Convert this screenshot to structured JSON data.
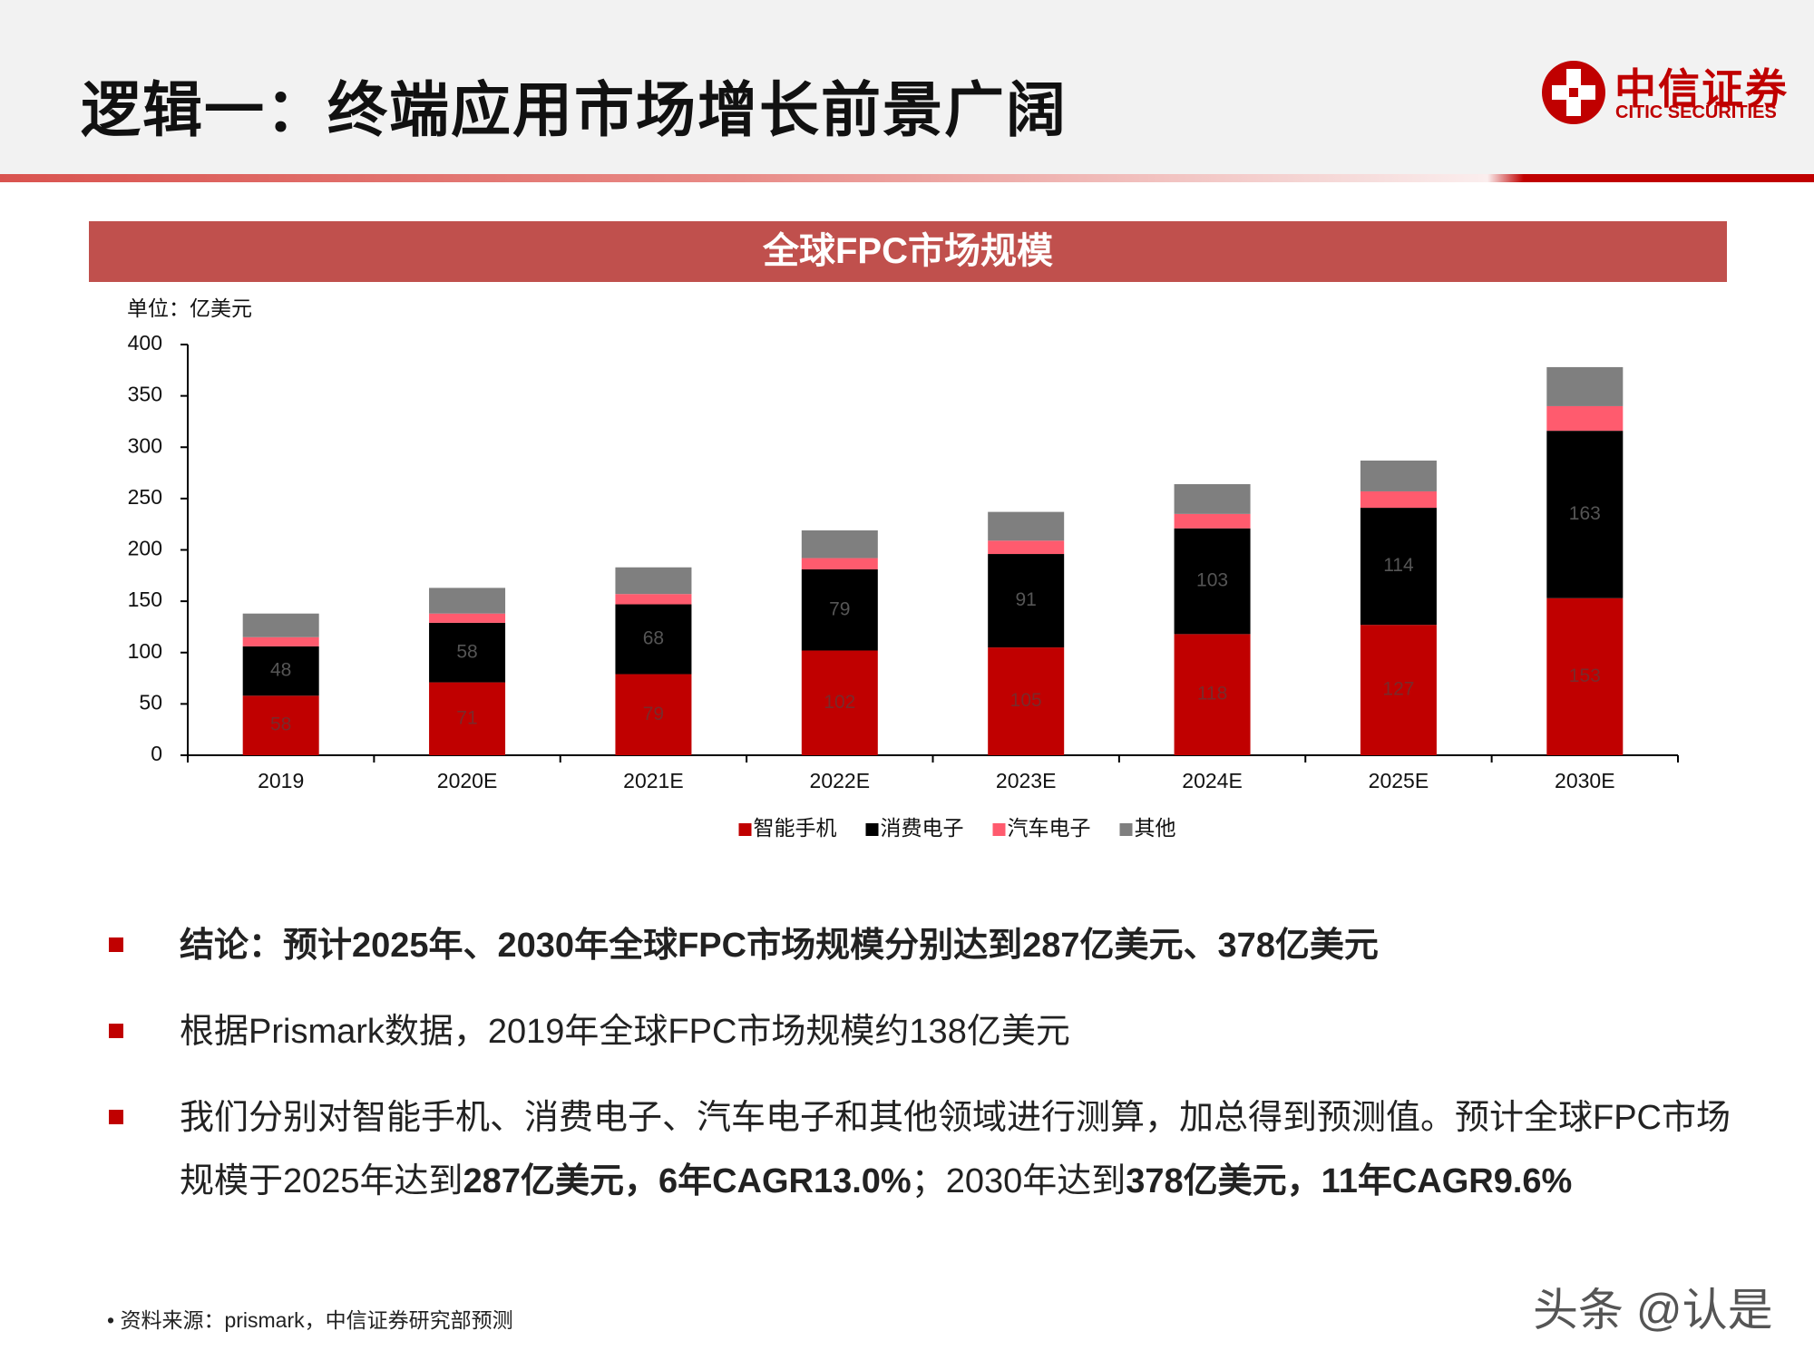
{
  "header": {
    "title": "逻辑一：终端应用市场增长前景广阔",
    "logo_cn": "中信证券",
    "logo_en": "CITIC SECURITIES"
  },
  "chart_data": {
    "type": "stacked_bar",
    "title": "全球FPC市场规模",
    "unit_label": "单位：亿美元",
    "categories": [
      "2019",
      "2020E",
      "2021E",
      "2022E",
      "2023E",
      "2024E",
      "2025E",
      "2030E"
    ],
    "series": [
      {
        "name": "智能手机",
        "color": "#c00000",
        "values": [
          58,
          71,
          79,
          102,
          105,
          118,
          127,
          153
        ],
        "data_labels": true,
        "label_color": "#7a2a2a"
      },
      {
        "name": "消费电子",
        "color": "#000000",
        "values": [
          48,
          58,
          68,
          79,
          91,
          103,
          114,
          163
        ],
        "data_labels": true,
        "label_color": "#555555"
      },
      {
        "name": "汽车电子",
        "color": "#ff5b6e",
        "values": [
          9,
          9,
          10,
          11,
          13,
          14,
          16,
          24
        ],
        "data_labels": false
      },
      {
        "name": "其他",
        "color": "#7f7f7f",
        "values": [
          23,
          25,
          26,
          27,
          28,
          29,
          30,
          38
        ],
        "data_labels": false
      }
    ],
    "ylim": [
      0,
      400
    ],
    "yticks": [
      0,
      50,
      100,
      150,
      200,
      250,
      300,
      350,
      400
    ],
    "grid": false,
    "legend": "bottom"
  },
  "bullets": [
    [
      {
        "text": "结论：预计2025年、2030年全球FPC市场规模分别达到287亿美元、378亿美元",
        "bold": true
      }
    ],
    [
      {
        "text": "根据Prismark数据，2019年全球FPC市场规模约138亿美元",
        "bold": false
      }
    ],
    [
      {
        "text": "我们分别对智能手机、消费电子、汽车电子和其他领域进行测算，加总得到预测值。预计全球FPC市场规模于2025年达到",
        "bold": false
      },
      {
        "text": "287亿美元，6年CAGR13.0%",
        "bold": true
      },
      {
        "text": "；2030年达到",
        "bold": false
      },
      {
        "text": "378亿美元，11年CAGR9.6%",
        "bold": true
      }
    ]
  ],
  "source": "• 资料来源：prismark，中信证券研究部预测",
  "watermark": "头条 @认是"
}
